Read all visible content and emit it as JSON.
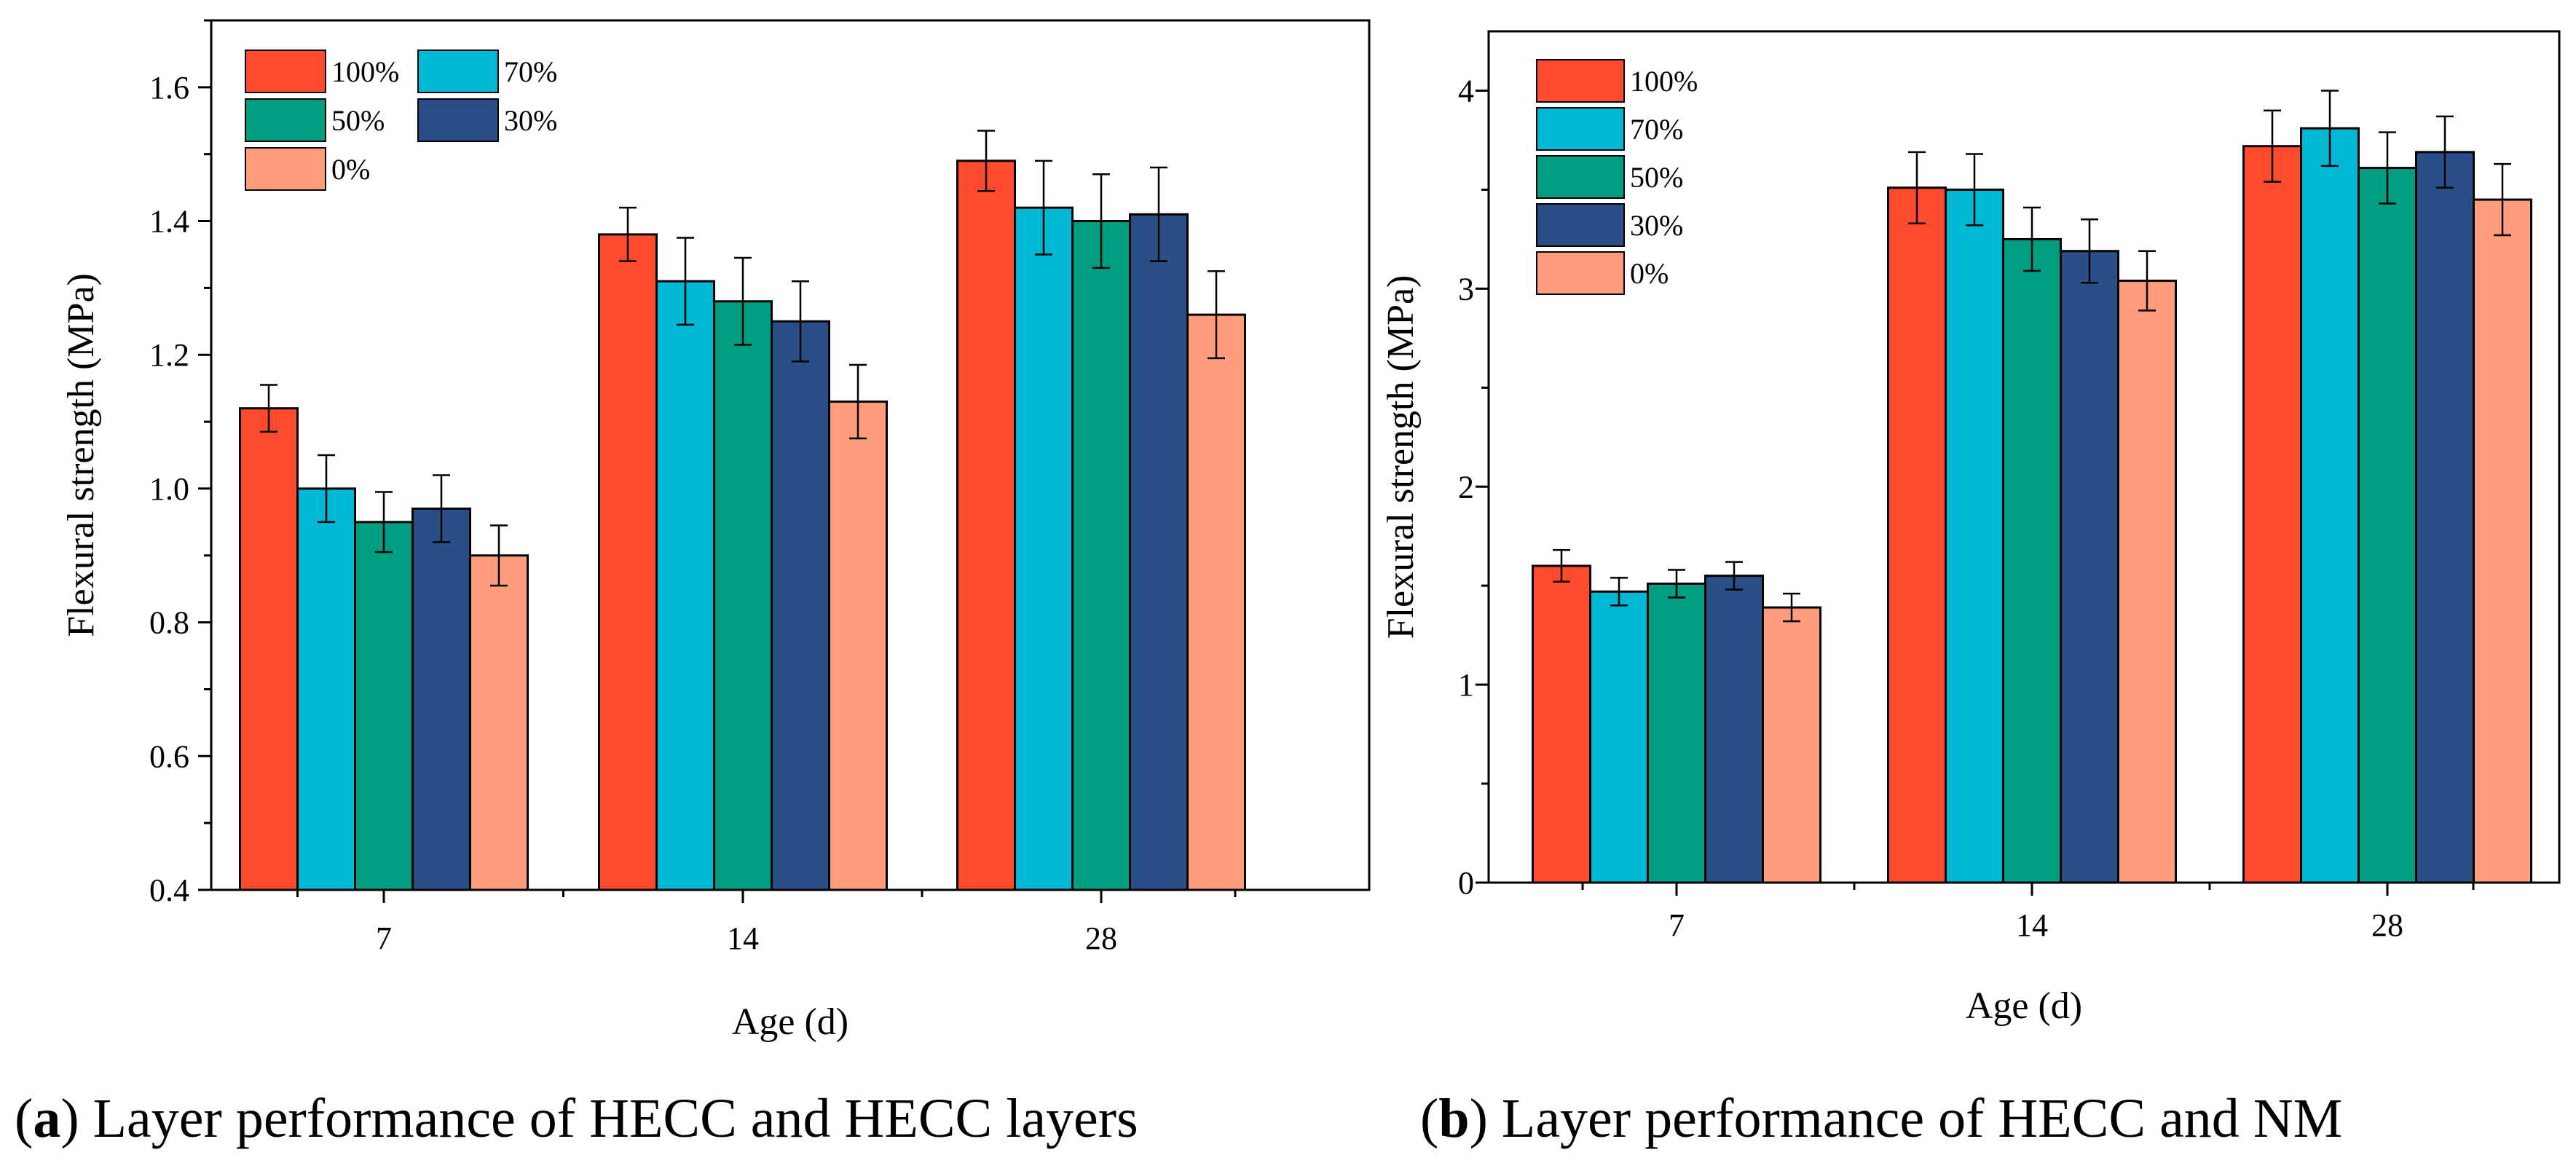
{
  "colors": {
    "100%": "#FF4A2E",
    "70%": "#00B8D4",
    "50%": "#009E80",
    "30%": "#2A4F86",
    "0%": "#FF9C7C"
  },
  "chart_data": [
    {
      "type": "bar",
      "categories": [
        "7",
        "14",
        "28"
      ],
      "xlabel": "Age (d)",
      "ylabel": "Flexural strength (MPa)",
      "ylim": [
        0.4,
        1.7
      ],
      "yticks": [
        0.4,
        0.6,
        0.8,
        1.0,
        1.2,
        1.4,
        1.6
      ],
      "ytick_labels": [
        "0.4",
        "0.6",
        "0.8",
        "1.0",
        "1.2",
        "1.4",
        "1.6"
      ],
      "grid": false,
      "legend_position": "top-left",
      "legend_columns": 2,
      "series": [
        {
          "name": "100%",
          "values": [
            1.12,
            1.38,
            1.49
          ],
          "errors": [
            0.035,
            0.04,
            0.045
          ]
        },
        {
          "name": "70%",
          "values": [
            1.0,
            1.31,
            1.42
          ],
          "errors": [
            0.05,
            0.065,
            0.07
          ]
        },
        {
          "name": "50%",
          "values": [
            0.95,
            1.28,
            1.4
          ],
          "errors": [
            0.045,
            0.065,
            0.07
          ]
        },
        {
          "name": "30%",
          "values": [
            0.97,
            1.25,
            1.41
          ],
          "errors": [
            0.05,
            0.06,
            0.07
          ]
        },
        {
          "name": "0%",
          "values": [
            0.9,
            1.13,
            1.26
          ],
          "errors": [
            0.045,
            0.055,
            0.065
          ]
        }
      ],
      "caption_letter": "a",
      "caption_text": "Layer performance of HECC and HECC layers"
    },
    {
      "type": "bar",
      "categories": [
        "7",
        "14",
        "28"
      ],
      "xlabel": "Age (d)",
      "ylabel": "Flexural strength (MPa)",
      "ylim": [
        0,
        4.3
      ],
      "yticks": [
        0,
        1,
        2,
        3,
        4
      ],
      "ytick_labels": [
        "0",
        "1",
        "2",
        "3",
        "4"
      ],
      "grid": false,
      "legend_position": "top-left",
      "legend_columns": 1,
      "series": [
        {
          "name": "100%",
          "values": [
            1.6,
            3.51,
            3.72
          ],
          "errors": [
            0.08,
            0.18,
            0.18
          ]
        },
        {
          "name": "70%",
          "values": [
            1.47,
            3.5,
            3.81
          ],
          "errors": [
            0.07,
            0.18,
            0.19
          ]
        },
        {
          "name": "50%",
          "values": [
            1.51,
            3.25,
            3.61
          ],
          "errors": [
            0.07,
            0.16,
            0.18
          ]
        },
        {
          "name": "30%",
          "values": [
            1.55,
            3.19,
            3.69
          ],
          "errors": [
            0.07,
            0.16,
            0.18
          ]
        },
        {
          "name": "0%",
          "values": [
            1.39,
            3.04,
            3.45
          ],
          "errors": [
            0.07,
            0.15,
            0.18
          ]
        }
      ],
      "caption_letter": "b",
      "caption_text": "Layer performance of HECC and NM"
    }
  ]
}
